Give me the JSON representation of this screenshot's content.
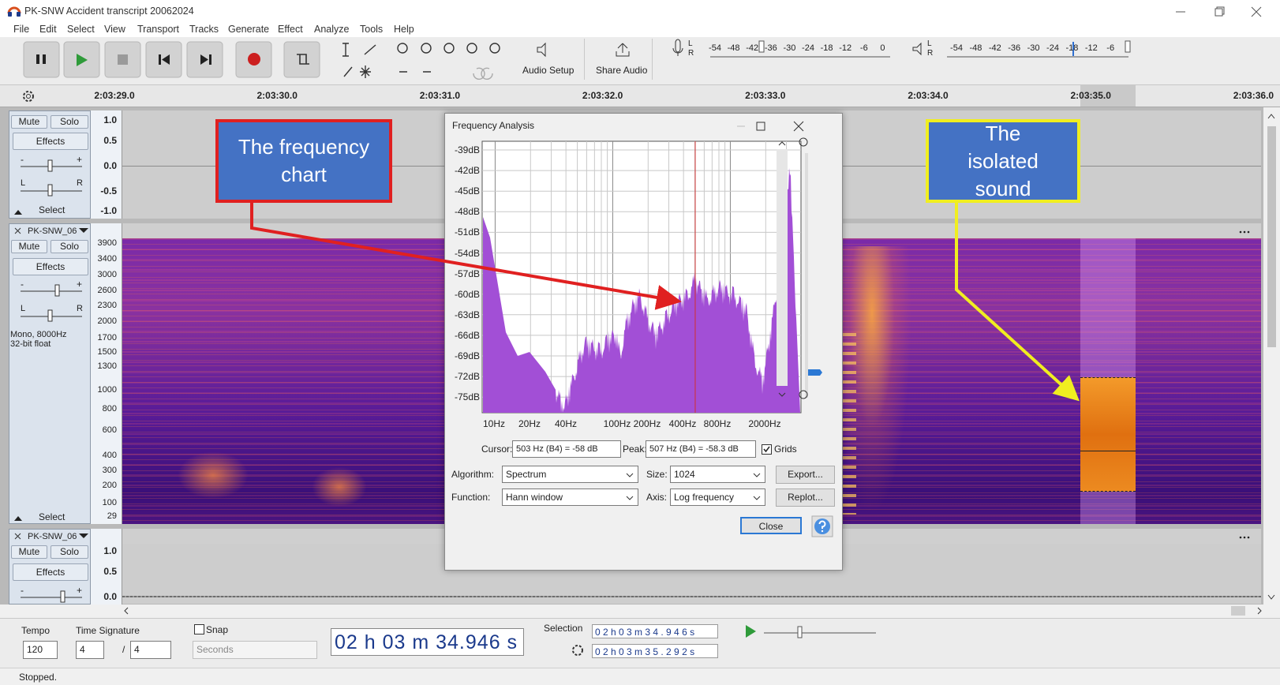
{
  "window": {
    "title": "PK-SNW Accident transcript 20062024"
  },
  "menu": [
    "File",
    "Edit",
    "Select",
    "View",
    "Transport",
    "Tracks",
    "Generate",
    "Effect",
    "Analyze",
    "Tools",
    "Help"
  ],
  "toolbar": {
    "audio_setup": "Audio Setup",
    "share_audio": "Share Audio",
    "record_meter": {
      "channels": [
        "L",
        "R"
      ],
      "ticks": [
        "-54",
        "-48",
        "-42",
        "-36",
        "-30",
        "-24",
        "-18",
        "-12",
        "-6",
        "0"
      ]
    },
    "playback_meter": {
      "channels": [
        "L",
        "R"
      ],
      "ticks": [
        "-54",
        "-48",
        "-42",
        "-36",
        "-30",
        "-24",
        "-18",
        "-12",
        "-6"
      ]
    }
  },
  "timeline": [
    "2:03:29.0",
    "2:03:30.0",
    "2:03:31.0",
    "2:03:32.0",
    "2:03:33.0",
    "2:03:34.0",
    "2:03:35.0",
    "2:03:36.0"
  ],
  "tracks": [
    {
      "mute": "Mute",
      "solo": "Solo",
      "effects": "Effects",
      "gain": [
        "-",
        "+"
      ],
      "pan": [
        "L",
        "R"
      ],
      "select": "Select",
      "scale": [
        "1.0",
        "0.5",
        "0.0",
        "-0.5",
        "-1.0"
      ]
    },
    {
      "name": "PK-SNW_06",
      "mute": "Mute",
      "solo": "Solo",
      "effects": "Effects",
      "gain": [
        "-",
        "+"
      ],
      "pan": [
        "L",
        "R"
      ],
      "format": [
        "Mono, 8000Hz",
        "32-bit float"
      ],
      "select": "Select",
      "scale": [
        "3900",
        "3400",
        "3000",
        "2600",
        "2300",
        "2000",
        "1700",
        "1500",
        "1300",
        "1000",
        "800",
        "600",
        "400",
        "300",
        "200",
        "100",
        "29"
      ]
    },
    {
      "name": "PK-SNW_06",
      "mute": "Mute",
      "solo": "Solo",
      "effects": "Effects",
      "gain": [
        "-",
        "+"
      ],
      "scale": [
        "1.0",
        "0.5",
        "0.0"
      ]
    }
  ],
  "dialog": {
    "title": "Frequency Analysis",
    "y_labels": [
      "-39dB",
      "-42dB",
      "-45dB",
      "-48dB",
      "-51dB",
      "-54dB",
      "-57dB",
      "-60dB",
      "-63dB",
      "-66dB",
      "-69dB",
      "-72dB",
      "-75dB"
    ],
    "x_labels": [
      "10Hz",
      "20Hz",
      "40Hz",
      "100Hz",
      "200Hz",
      "400Hz",
      "800Hz",
      "2000Hz"
    ],
    "cursor_label": "Cursor:",
    "cursor": "503 Hz (B4) = -58 dB",
    "peak_label": "Peak:",
    "peak": "507 Hz (B4) = -58.3 dB",
    "grids": "Grids",
    "algorithm_label": "Algorithm:",
    "algorithm": "Spectrum",
    "size_label": "Size:",
    "size": "1024",
    "export": "Export...",
    "function_label": "Function:",
    "function": "Hann window",
    "axis_label": "Axis:",
    "axis": "Log frequency",
    "replot": "Replot...",
    "close": "Close"
  },
  "annotations": [
    {
      "text": "The frequency chart"
    },
    {
      "text": "The isolated sound"
    }
  ],
  "bottom": {
    "tempo_label": "Tempo",
    "time_signature_label": "Time Signature",
    "tempo": "120",
    "beats": "4",
    "slash": "/",
    "beat_unit": "4",
    "snap": "Snap",
    "snap_unit": "Seconds",
    "time": "02 h 03 m 34.946 s",
    "selection_label": "Selection",
    "selection_start": "0 2 h 0 3 m 3 4 . 9 4 6 s",
    "selection_end": "0 2 h 0 3 m 3 5 . 2 9 2 s"
  },
  "status": "Stopped."
}
